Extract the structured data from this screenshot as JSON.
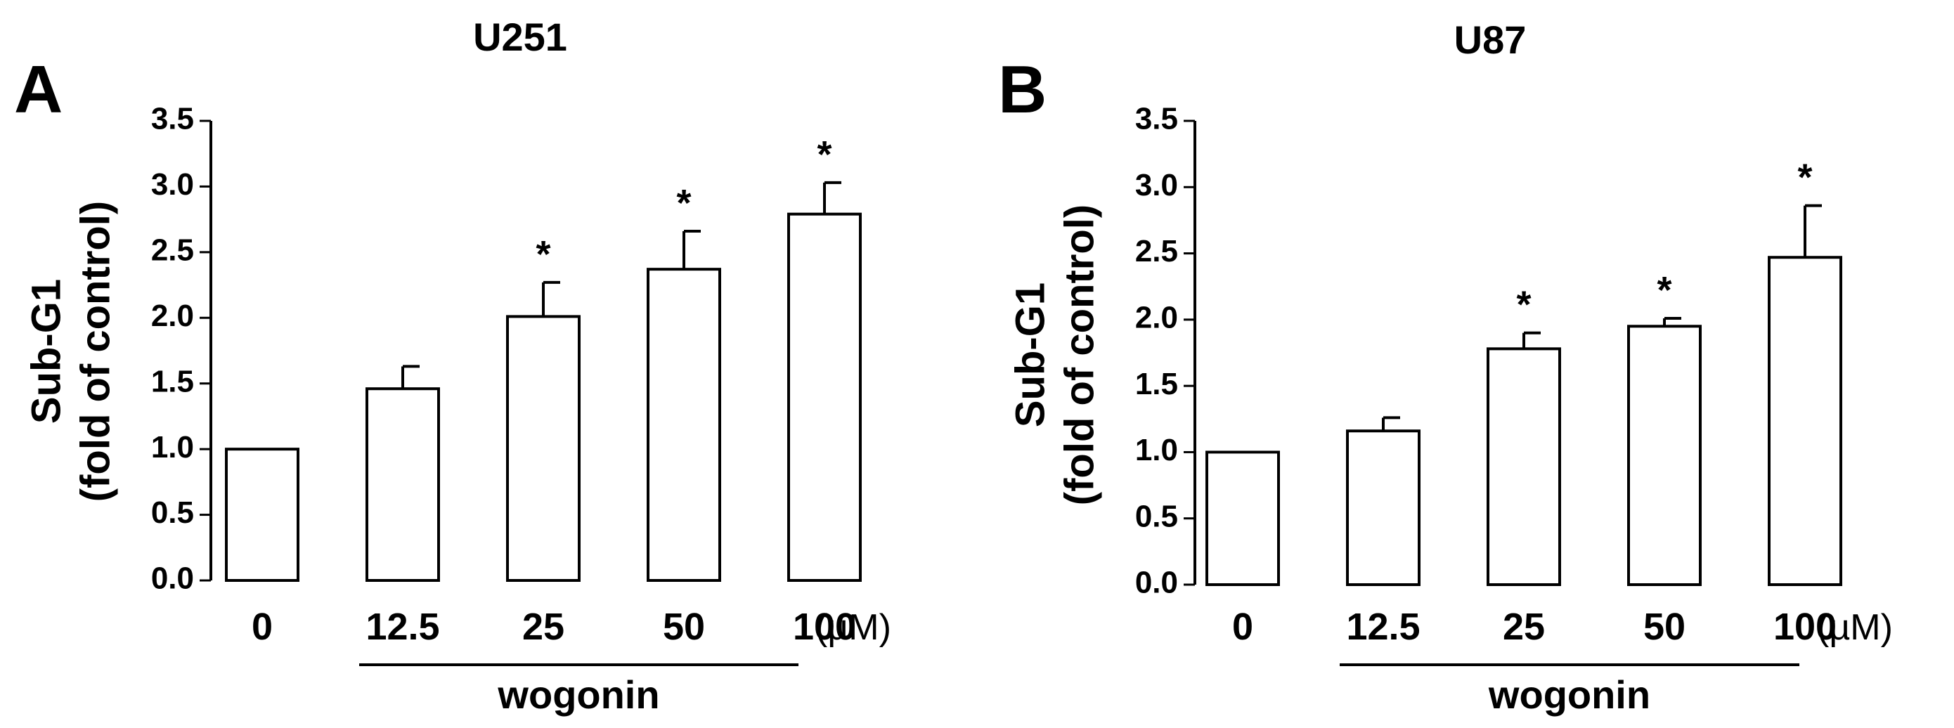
{
  "chart_data": [
    {
      "type": "bar",
      "panel_label": "A",
      "title": "U251",
      "ylabel_line1": "Sub-G1",
      "ylabel_line2": "(fold of control)",
      "categories": [
        "0",
        "12.5",
        "25",
        "50",
        "100"
      ],
      "values": [
        1.0,
        1.46,
        2.01,
        2.37,
        2.79
      ],
      "errors": [
        0.0,
        0.17,
        0.26,
        0.29,
        0.24
      ],
      "significant": [
        false,
        false,
        true,
        true,
        true
      ],
      "marker": "*",
      "unit": "(µM)",
      "group_label": "wogonin",
      "group_from_index": 1,
      "ylim": [
        0,
        3.5
      ],
      "yticks": [
        "0.0",
        "0.5",
        "1.0",
        "1.5",
        "2.0",
        "2.5",
        "3.0",
        "3.5"
      ],
      "bar_fill": "#ffffff",
      "bar_stroke": "#000000",
      "grid": false
    },
    {
      "type": "bar",
      "panel_label": "B",
      "title": "U87",
      "ylabel_line1": "Sub-G1",
      "ylabel_line2": "(fold of control)",
      "categories": [
        "0",
        "12.5",
        "25",
        "50",
        "100"
      ],
      "values": [
        1.0,
        1.16,
        1.78,
        1.95,
        2.47
      ],
      "errors": [
        0.0,
        0.1,
        0.12,
        0.06,
        0.39
      ],
      "significant": [
        false,
        false,
        true,
        true,
        true
      ],
      "marker": "*",
      "unit": "(µM)",
      "group_label": "wogonin",
      "group_from_index": 1,
      "ylim": [
        0,
        3.5
      ],
      "yticks": [
        "0.0",
        "0.5",
        "1.0",
        "1.5",
        "2.0",
        "2.5",
        "3.0",
        "3.5"
      ],
      "bar_fill": "#ffffff",
      "bar_stroke": "#000000",
      "grid": false
    }
  ]
}
